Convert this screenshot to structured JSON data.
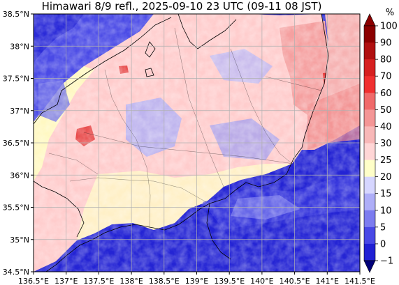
{
  "title": "Himawari 8/9 refl., 2025-09-10 23 UTC (09-11 08 JST)",
  "colorbar": {
    "unit": "%",
    "ticks": [
      "100",
      "90",
      "80",
      "70",
      "60",
      "50",
      "40",
      "30",
      "25",
      "20",
      "15",
      "10",
      "5",
      "0",
      "−1"
    ],
    "colors": [
      "#8b0000",
      "#b01010",
      "#d62020",
      "#f03030",
      "#f06a6a",
      "#f49696",
      "#f8b8b8",
      "#ffd6d6",
      "#ffffc8",
      "#d6d6ff",
      "#aeaef8",
      "#7c7cf0",
      "#4848e6",
      "#2020d4",
      "#000090"
    ],
    "extend_min_color": "#00007a",
    "extend_max_color": "#8b0000"
  },
  "axes": {
    "lon_labels": [
      "136.5°E",
      "137°E",
      "137.5°E",
      "138°E",
      "138.5°E",
      "139°E",
      "139.5°E",
      "140°E",
      "140.5°E",
      "141°E",
      "141.5°E"
    ],
    "lat_labels": [
      "38.5°N",
      "38°N",
      "37.5°N",
      "37°N",
      "36.5°N",
      "36°N",
      "35.5°N",
      "35°N",
      "34.5°N"
    ],
    "lon_range": [
      136.5,
      141.5
    ],
    "lat_range": [
      34.5,
      38.5
    ],
    "grid": true
  },
  "colors": {
    "ocean_clear": "#2626d8",
    "ocean_deep": "#1c1cc4",
    "land_low": "#ffd0d0",
    "land_high": "#f07878",
    "coast": "#000000",
    "grid": "#b0b0b0"
  }
}
